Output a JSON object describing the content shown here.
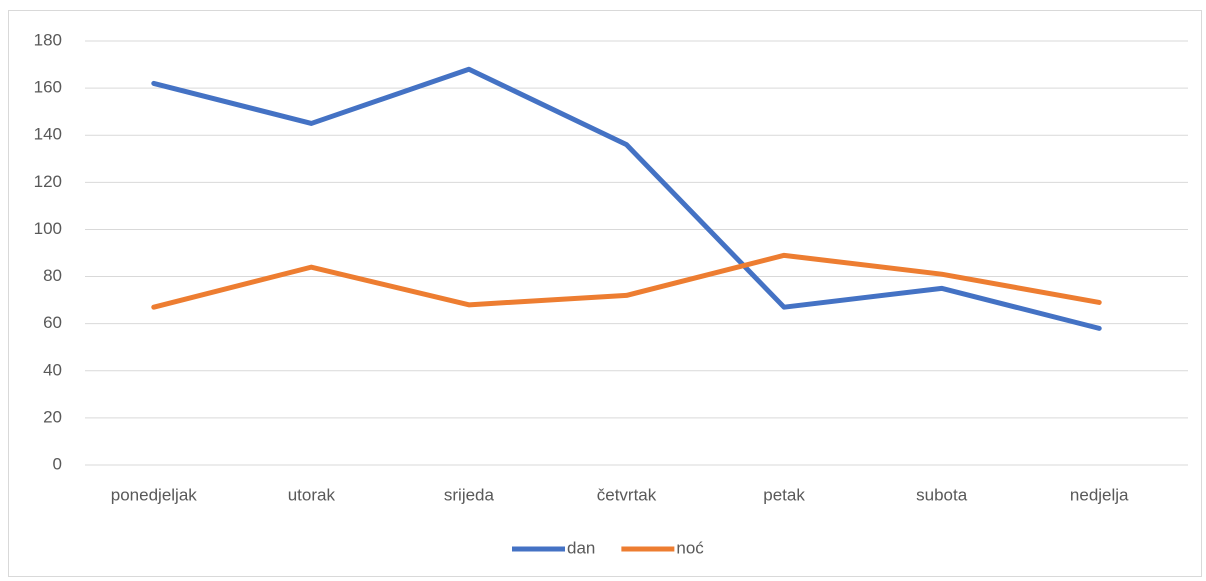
{
  "chart_data": {
    "type": "line",
    "categories": [
      "ponedjeljak",
      "utorak",
      "srijeda",
      "četvrtak",
      "petak",
      "subota",
      "nedjelja"
    ],
    "series": [
      {
        "name": "dan",
        "color": "#4472c4",
        "values": [
          162,
          145,
          168,
          136,
          67,
          75,
          58
        ]
      },
      {
        "name": "noć",
        "color": "#ed7d31",
        "values": [
          67,
          84,
          68,
          72,
          89,
          81,
          69
        ]
      }
    ],
    "ylim": [
      0,
      180
    ],
    "yticks": [
      0,
      20,
      40,
      60,
      80,
      100,
      120,
      140,
      160,
      180
    ],
    "grid": true,
    "legend": "bottom"
  }
}
